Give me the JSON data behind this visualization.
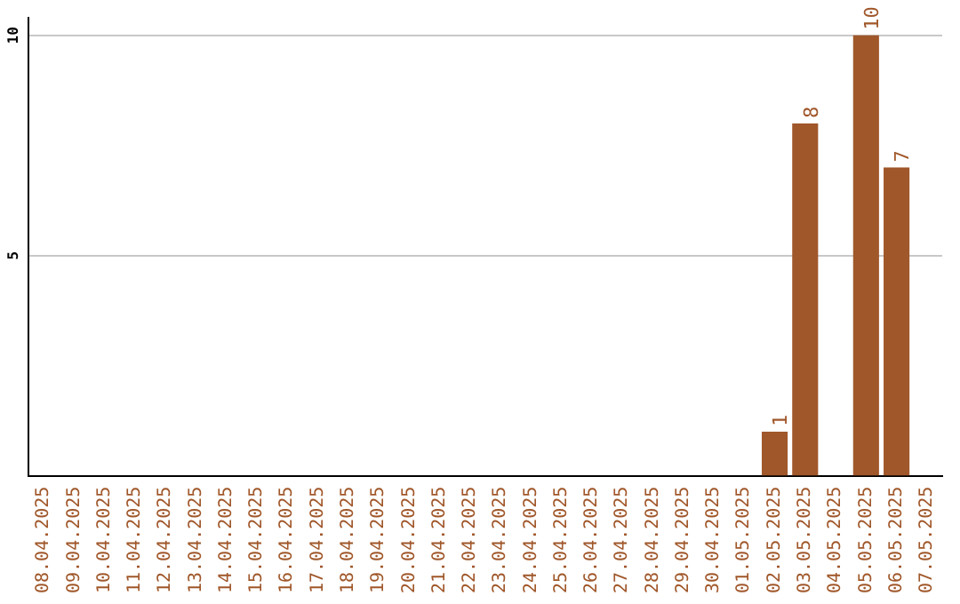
{
  "chart_data": {
    "type": "bar",
    "categories": [
      "08.04.2025",
      "09.04.2025",
      "10.04.2025",
      "11.04.2025",
      "12.04.2025",
      "13.04.2025",
      "14.04.2025",
      "15.04.2025",
      "16.04.2025",
      "17.04.2025",
      "18.04.2025",
      "19.04.2025",
      "20.04.2025",
      "21.04.2025",
      "22.04.2025",
      "23.04.2025",
      "24.04.2025",
      "25.04.2025",
      "26.04.2025",
      "27.04.2025",
      "28.04.2025",
      "29.04.2025",
      "30.04.2025",
      "01.05.2025",
      "02.05.2025",
      "03.05.2025",
      "04.05.2025",
      "05.05.2025",
      "06.05.2025",
      "07.05.2025"
    ],
    "values": [
      null,
      null,
      null,
      null,
      null,
      null,
      null,
      null,
      null,
      null,
      null,
      null,
      null,
      null,
      null,
      null,
      null,
      null,
      null,
      null,
      null,
      null,
      null,
      null,
      1,
      8,
      null,
      10,
      7,
      null
    ],
    "color": "#a0572a",
    "ylim": [
      0,
      10.4
    ],
    "yticks": [
      5,
      10
    ],
    "grid": "y",
    "legend": false,
    "data_labels": true
  }
}
